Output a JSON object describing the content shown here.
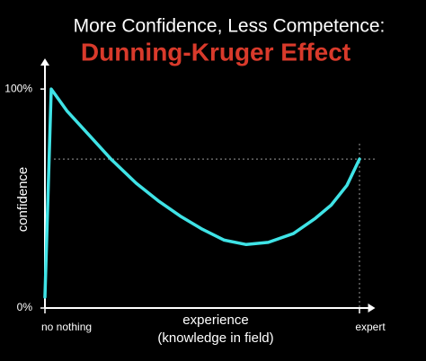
{
  "chart_data": {
    "type": "line",
    "title": "More Confidence, Less Competence:",
    "subtitle": "Dunning-Kruger Effect",
    "subtitle_color": "#d93a2b",
    "x_label": [
      "experience",
      "(knowledge in field)"
    ],
    "y_label": "confidence",
    "x": [
      0,
      2,
      7,
      14,
      21,
      29,
      36,
      43,
      50,
      57,
      64,
      71,
      79,
      86,
      91,
      96,
      100
    ],
    "series": [
      {
        "color": "#3fe3e6",
        "values": [
          5,
          100,
          90,
          79,
          68,
          57,
          49,
          42,
          36,
          31,
          29,
          30,
          34,
          41,
          47,
          56,
          68
        ]
      }
    ],
    "xlim": [
      0,
      105
    ],
    "ylim": [
      0,
      114
    ],
    "xticks": [
      {
        "value": 0,
        "label": "no nothing"
      },
      {
        "value": 100,
        "label": "expert"
      }
    ],
    "yticks": [
      {
        "value": 0,
        "label": "0%"
      },
      {
        "value": 100,
        "label": "100%"
      }
    ],
    "reference_lines": [
      {
        "axis": "y",
        "value": 68
      },
      {
        "axis": "x",
        "value": 100
      }
    ],
    "grid": false
  }
}
